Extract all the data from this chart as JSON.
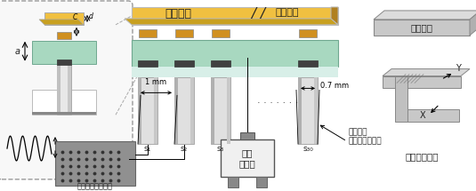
{
  "bg_color": "#ffffff",
  "sample_color": "#f0c040",
  "sample_edge": "#c8a020",
  "sample_side_color": "#c8a020",
  "sensor_green": "#a8d8c0",
  "sensor_green_edge": "#70a890",
  "pillar_light": "#d8d8d8",
  "pillar_mid": "#b8b8b8",
  "pillar_dark": "#808080",
  "cap_orange": "#d09020",
  "black_cap": "#404040",
  "inset_bg": "#f8f8f8",
  "signal_bg": "#909090",
  "vibrator_bg": "#d0d0d0",
  "stage_light": "#d0d0d0",
  "stage_mid": "#b0b0b0",
  "stage_dark": "#909090",
  "text_color": "#222222",
  "label_sample": "サンプル",
  "label_scan": "／／ 走査方向",
  "label_fixture": "固定治具",
  "label_stage": "自動ステージ",
  "label_signal": "信号処理システム",
  "label_vibrator_1": "振動",
  "label_vibrator_2": "発生器",
  "label_sensor_1": "ライン型",
  "label_sensor_2": "アレイセンサー",
  "label_1mm": "1 mm",
  "label_07mm": "0.7 mm",
  "label_s1": "s₁",
  "label_s2": "s₂",
  "label_s3": "s₃",
  "label_s30": "s₃₀",
  "label_C": "C",
  "label_d": "d",
  "label_a": "a",
  "label_X": "X",
  "label_Y": "Y"
}
